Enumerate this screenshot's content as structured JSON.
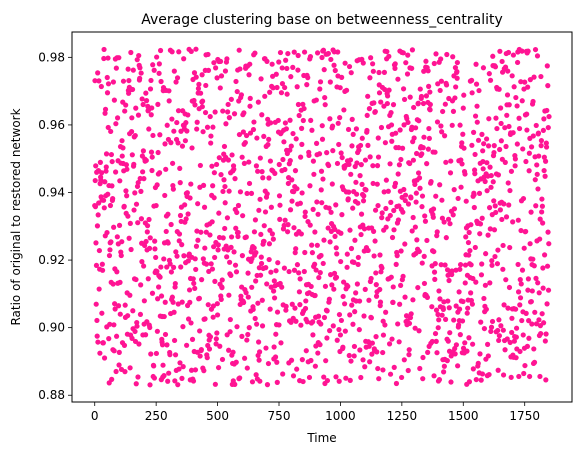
{
  "chart_data": {
    "type": "scatter",
    "title": "Average clustering base on betweenness_centrality",
    "xlabel": "Time",
    "ylabel": "Ratio of original to restored network",
    "xlim": [
      -92.5,
      1942.5
    ],
    "ylim": [
      0.878,
      0.9875
    ],
    "x_ticks": [
      0,
      250,
      500,
      750,
      1000,
      1250,
      1500,
      1750
    ],
    "y_ticks": [
      0.88,
      0.9,
      0.92,
      0.94,
      0.96,
      0.98
    ],
    "grid": false,
    "legend": "none",
    "marker_color": "#ff1493",
    "n_points": 1850,
    "x_range": [
      0,
      1849
    ],
    "y_range": [
      0.883,
      0.9825
    ],
    "distribution": "uniform random scatter, one point per time step"
  }
}
